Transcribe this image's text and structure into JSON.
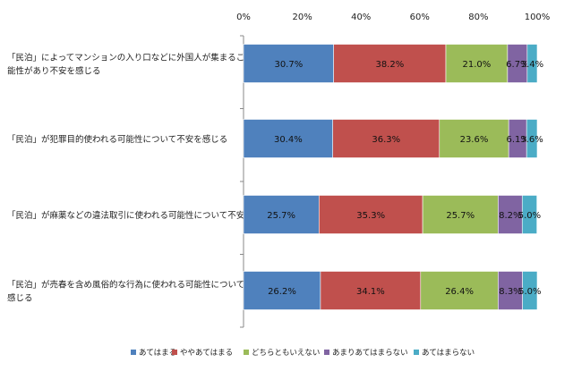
{
  "chart_data": {
    "type": "bar",
    "orientation": "horizontal",
    "stacked": true,
    "percent_stacked": true,
    "title": "",
    "xlabel": "",
    "ylabel": "",
    "xlim": [
      0,
      100
    ],
    "x_ticks": [
      "0%",
      "20%",
      "40%",
      "60%",
      "80%",
      "100%"
    ],
    "x_axis_position": "top",
    "grid": false,
    "legend_position": "bottom",
    "categories": [
      [
        "「民泊」によってマンションの入り口などに外国人が集まることが多くなる可",
        "能性があり不安を感じる"
      ],
      [
        "「民泊」が犯罪目的使われる可能性について不安を感じる"
      ],
      [
        "「民泊」が麻薬などの違法取引に使われる可能性について不安を感じる"
      ],
      [
        "「民泊」が売春を含め風俗的な行為に使われる可能性について不安を",
        "感じる"
      ]
    ],
    "series": [
      {
        "name": "あてはまる",
        "color": "#4F81BD",
        "values": [
          30.7,
          30.4,
          25.7,
          26.2
        ],
        "labels": [
          "30.7%",
          "30.4%",
          "25.7%",
          "26.2%"
        ]
      },
      {
        "name": "ややあてはまる",
        "color": "#C0504D",
        "values": [
          38.2,
          36.3,
          35.3,
          34.1
        ],
        "labels": [
          "38.2%",
          "36.3%",
          "35.3%",
          "34.1%"
        ]
      },
      {
        "name": "どちらともいえない",
        "color": "#9BBB59",
        "values": [
          21.0,
          23.6,
          25.7,
          26.4
        ],
        "labels": [
          "21.0%",
          "23.6%",
          "25.7%",
          "26.4%"
        ]
      },
      {
        "name": "あまりあてはまらない",
        "color": "#8064A2",
        "values": [
          6.7,
          6.1,
          8.2,
          8.3
        ],
        "labels": [
          "6.7%",
          "6.1%",
          "8.2%",
          "8.3%"
        ]
      },
      {
        "name": "あてはまらない",
        "color": "#4BACC6",
        "values": [
          3.4,
          3.6,
          5.0,
          5.0
        ],
        "labels": [
          "3.4%",
          "3.6%",
          "5.0%",
          "5.0%"
        ]
      }
    ]
  }
}
